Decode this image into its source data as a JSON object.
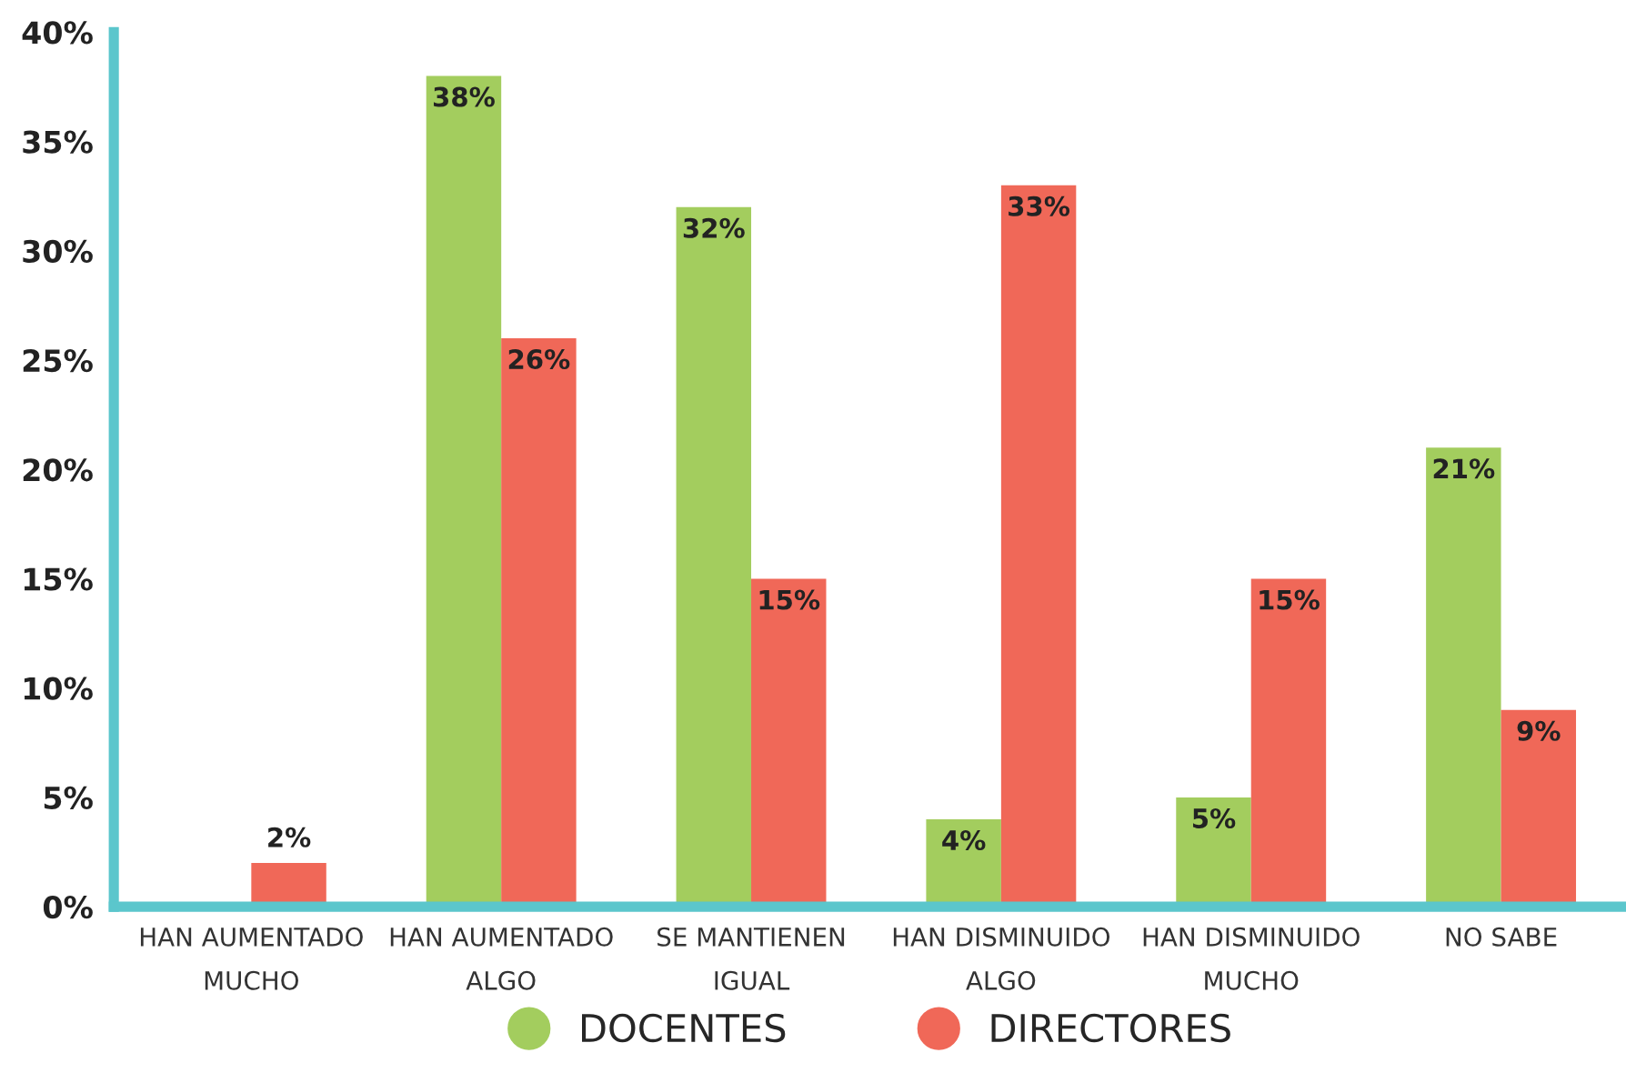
{
  "chart_data": {
    "type": "bar",
    "categories": [
      "HAN AUMENTADO\nMUCHO",
      "HAN AUMENTADO\nALGO",
      "SE MANTIENEN\nIGUAL",
      "HAN DISMINUIDO\nALGO",
      "HAN DISMINUIDO\nMUCHO",
      "NO SABE"
    ],
    "series": [
      {
        "name": "DOCENTES",
        "color": "#a3cd5e",
        "values": [
          null,
          38,
          32,
          4,
          5,
          21
        ],
        "value_labels": [
          null,
          "38%",
          "32%",
          "4%",
          "5%",
          "21%"
        ]
      },
      {
        "name": "DIRECTORES",
        "color": "#f06858",
        "values": [
          2,
          26,
          15,
          33,
          15,
          9
        ],
        "value_labels": [
          "2%",
          "26%",
          "15%",
          "33%",
          "15%",
          "9%"
        ]
      }
    ],
    "ylim": [
      0,
      40
    ],
    "yticks": [
      {
        "value": 0,
        "label": "0%"
      },
      {
        "value": 5,
        "label": "5%"
      },
      {
        "value": 10,
        "label": "10%"
      },
      {
        "value": 15,
        "label": "15%"
      },
      {
        "value": 20,
        "label": "20%"
      },
      {
        "value": 25,
        "label": "25%"
      },
      {
        "value": 30,
        "label": "30%"
      },
      {
        "value": 35,
        "label": "35%"
      },
      {
        "value": 40,
        "label": "40%"
      }
    ],
    "grid": false,
    "legend": "bottom"
  }
}
